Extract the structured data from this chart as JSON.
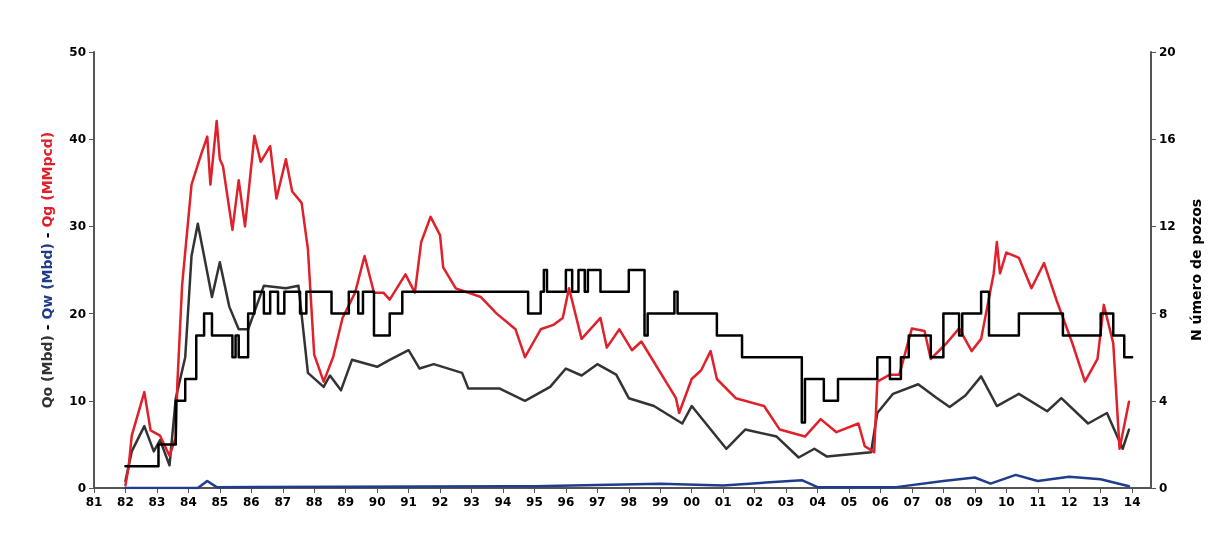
{
  "chart_data": {
    "type": "line",
    "ylabel": "Qo (Mbd) - Qw (Mbd) - Qg (MMpcd)",
    "y2label": "N úmero de pozos",
    "xlim": [
      1981,
      2014.6
    ],
    "xticks": [
      {
        "value": 1981,
        "label": "81"
      },
      {
        "value": 1982,
        "label": "82"
      },
      {
        "value": 1983,
        "label": "83"
      },
      {
        "value": 1984,
        "label": "84"
      },
      {
        "value": 1985,
        "label": "85"
      },
      {
        "value": 1986,
        "label": "86"
      },
      {
        "value": 1987,
        "label": "87"
      },
      {
        "value": 1988,
        "label": "88"
      },
      {
        "value": 1989,
        "label": "89"
      },
      {
        "value": 1990,
        "label": "90"
      },
      {
        "value": 1991,
        "label": "91"
      },
      {
        "value": 1992,
        "label": "92"
      },
      {
        "value": 1993,
        "label": "93"
      },
      {
        "value": 1994,
        "label": "94"
      },
      {
        "value": 1995,
        "label": "95"
      },
      {
        "value": 1996,
        "label": "96"
      },
      {
        "value": 1997,
        "label": "97"
      },
      {
        "value": 1998,
        "label": "98"
      },
      {
        "value": 1999,
        "label": "99"
      },
      {
        "value": 2000,
        "label": "00"
      },
      {
        "value": 2001,
        "label": "01"
      },
      {
        "value": 2002,
        "label": "02"
      },
      {
        "value": 2003,
        "label": "03"
      },
      {
        "value": 2004,
        "label": "04"
      },
      {
        "value": 2005,
        "label": "05"
      },
      {
        "value": 2006,
        "label": "06"
      },
      {
        "value": 2007,
        "label": "07"
      },
      {
        "value": 2008,
        "label": "08"
      },
      {
        "value": 2009,
        "label": "09"
      },
      {
        "value": 2010,
        "label": "10"
      },
      {
        "value": 2011,
        "label": "11"
      },
      {
        "value": 2012,
        "label": "12"
      },
      {
        "value": 2013,
        "label": "13"
      },
      {
        "value": 2014,
        "label": "14"
      }
    ],
    "ylim": [
      0,
      50
    ],
    "yticks": [
      0,
      10,
      20,
      30,
      40,
      50
    ],
    "y2lim": [
      0,
      20
    ],
    "y2ticks": [
      0,
      4,
      8,
      12,
      16,
      20
    ],
    "grid": false,
    "marker": "none",
    "line_style": "solid",
    "series": [
      {
        "color": "#333333",
        "x": [
          1982.0,
          1982.2,
          1982.6,
          1982.9,
          1983.1,
          1983.4,
          1983.6,
          1983.9,
          1984.1,
          1984.3,
          1984.5,
          1984.75,
          1985.0,
          1985.3,
          1985.6,
          1985.9,
          1986.4,
          1987.1,
          1987.5,
          1987.8,
          1988.3,
          1988.5,
          1988.85,
          1989.2,
          1990.0,
          1990.4,
          1991.0,
          1991.35,
          1991.8,
          1992.7,
          1992.9,
          1993.9,
          1994.7,
          1995.5,
          1996.0,
          1996.5,
          1997.0,
          1997.6,
          1998.0,
          1998.8,
          1999.7,
          2000.0,
          2001.1,
          2001.7,
          2002.7,
          2003.4,
          2003.9,
          2004.3,
          2005.7,
          2005.9,
          2006.4,
          2007.2,
          2007.8,
          2008.2,
          2008.7,
          2009.2,
          2009.7,
          2010.4,
          2011.3,
          2011.75,
          2012.6,
          2013.2,
          2013.7,
          2013.9
        ],
        "values": [
          0.8,
          4.2,
          7.1,
          4.2,
          5.5,
          2.6,
          10.3,
          15.0,
          26.6,
          30.3,
          26.6,
          21.9,
          25.9,
          20.8,
          18.2,
          18.2,
          23.2,
          22.9,
          23.2,
          13.2,
          11.6,
          12.9,
          11.2,
          14.7,
          13.9,
          14.7,
          15.8,
          13.7,
          14.2,
          13.2,
          11.4,
          11.4,
          10.0,
          11.6,
          13.7,
          12.9,
          14.2,
          13.0,
          10.3,
          9.4,
          7.4,
          9.4,
          4.5,
          6.7,
          5.9,
          3.5,
          4.5,
          3.6,
          4.1,
          8.6,
          10.8,
          11.9,
          10.3,
          9.3,
          10.6,
          12.8,
          9.4,
          10.8,
          8.8,
          10.3,
          7.4,
          8.6,
          4.5,
          6.7
        ]
      },
      {
        "color": "#1f3d8c",
        "x": [
          1982.0,
          1984.3,
          1984.6,
          1984.9,
          1995.0,
          1999.0,
          2001.0,
          2003.5,
          2004.0,
          2006.5,
          2008.0,
          2009.0,
          2009.5,
          2010.3,
          2011.0,
          2012.0,
          2013.0,
          2013.9
        ],
        "values": [
          0,
          0,
          0.8,
          0.1,
          0.2,
          0.5,
          0.3,
          0.9,
          0.1,
          0.1,
          0.8,
          1.2,
          0.5,
          1.5,
          0.8,
          1.3,
          1.0,
          0.2
        ]
      },
      {
        "color": "#e0202a",
        "x": [
          1982.0,
          1982.1,
          1982.2,
          1982.6,
          1982.8,
          1983.1,
          1983.4,
          1983.6,
          1983.65,
          1983.8,
          1984.1,
          1984.4,
          1984.6,
          1984.7,
          1984.9,
          1985.0,
          1985.1,
          1985.4,
          1985.6,
          1985.8,
          1986.1,
          1986.3,
          1986.6,
          1986.8,
          1987.1,
          1987.3,
          1987.6,
          1987.8,
          1988.0,
          1988.3,
          1988.6,
          1988.9,
          1989.3,
          1989.6,
          1989.9,
          1990.2,
          1990.4,
          1990.9,
          1991.2,
          1991.4,
          1991.7,
          1992.0,
          1992.1,
          1992.5,
          1993.3,
          1993.8,
          1994.4,
          1994.7,
          1995.2,
          1995.6,
          1995.9,
          1996.1,
          1996.5,
          1997.1,
          1997.3,
          1997.7,
          1998.1,
          1998.4,
          1999.5,
          1999.6,
          2000.0,
          2000.3,
          2000.6,
          2000.8,
          2001.4,
          2002.3,
          2002.8,
          2003.6,
          2004.1,
          2004.6,
          2005.3,
          2005.5,
          2005.8,
          2005.9,
          2006.3,
          2006.6,
          2007.0,
          2007.4,
          2007.6,
          2008.1,
          2008.5,
          2008.9,
          2009.2,
          2009.6,
          2009.7,
          2009.8,
          2010.0,
          2010.4,
          2010.8,
          2011.2,
          2011.6,
          2012.1,
          2012.5,
          2012.9,
          2013.1,
          2013.4,
          2013.6,
          2013.9
        ],
        "values": [
          0.3,
          2.4,
          6.0,
          11.0,
          6.6,
          6.0,
          3.7,
          5.8,
          12.0,
          23.2,
          34.8,
          38.2,
          40.3,
          34.8,
          42.1,
          37.7,
          36.9,
          29.6,
          35.3,
          30.0,
          40.4,
          37.4,
          39.2,
          33.2,
          37.7,
          34.0,
          32.7,
          27.4,
          15.3,
          12.2,
          15.0,
          19.5,
          22.4,
          26.6,
          22.4,
          22.4,
          21.6,
          24.5,
          22.4,
          28.2,
          31.1,
          29.0,
          25.3,
          22.9,
          21.9,
          20.0,
          18.2,
          15.0,
          18.2,
          18.7,
          19.5,
          22.9,
          17.1,
          19.5,
          16.1,
          18.2,
          15.8,
          16.8,
          10.3,
          8.6,
          12.5,
          13.5,
          15.7,
          12.5,
          10.3,
          9.4,
          6.7,
          5.9,
          7.9,
          6.4,
          7.4,
          4.8,
          4.1,
          12.2,
          13.0,
          13.0,
          18.3,
          18.0,
          14.8,
          16.6,
          18.3,
          15.7,
          17.1,
          24.6,
          28.2,
          24.6,
          27.0,
          26.4,
          22.9,
          25.8,
          21.5,
          16.6,
          12.2,
          14.8,
          21.0,
          16.6,
          4.5,
          9.9
        ]
      },
      {
        "type": "step",
        "axis": "y2",
        "color": "#000000",
        "x": [
          1982.0,
          1983.05,
          1983.6,
          1983.9,
          1984.25,
          1984.5,
          1984.75,
          1985.4,
          1985.5,
          1985.6,
          1985.9,
          1986.1,
          1986.4,
          1986.6,
          1986.85,
          1987.05,
          1987.55,
          1987.75,
          1988.55,
          1989.1,
          1989.4,
          1989.55,
          1989.9,
          1990.4,
          1990.8,
          1991.0,
          1994.8,
          1995.2,
          1995.3,
          1995.4,
          1996.0,
          1996.2,
          1996.4,
          1996.6,
          1996.7,
          1997.1,
          1998.0,
          1998.35,
          1998.5,
          1998.6,
          1999.45,
          1999.55,
          2000.8,
          2001.6,
          2002.75,
          2003.4,
          2003.5,
          2003.6,
          2004.2,
          2004.65,
          2005.9,
          2006.3,
          2006.65,
          2006.9,
          2007.6,
          2008.0,
          2008.5,
          2008.6,
          2009.2,
          2009.45,
          2010.4,
          2011.8,
          2012.5,
          2013.0,
          2013.4,
          2013.75,
          2014.0
        ],
        "values": [
          1,
          2,
          4,
          5,
          7,
          8,
          7,
          6,
          7,
          6,
          8,
          9,
          8,
          9,
          8,
          9,
          8,
          9,
          8,
          9,
          8,
          9,
          7,
          8,
          9,
          9,
          8,
          9,
          10,
          9,
          10,
          9,
          10,
          9,
          10,
          9,
          10,
          10,
          7,
          8,
          9,
          8,
          7,
          6,
          6,
          6,
          3,
          5,
          4,
          5,
          6,
          5,
          6,
          7,
          6,
          8,
          7,
          8,
          9,
          7,
          8,
          7,
          7,
          8,
          7,
          6,
          6
        ]
      }
    ]
  }
}
